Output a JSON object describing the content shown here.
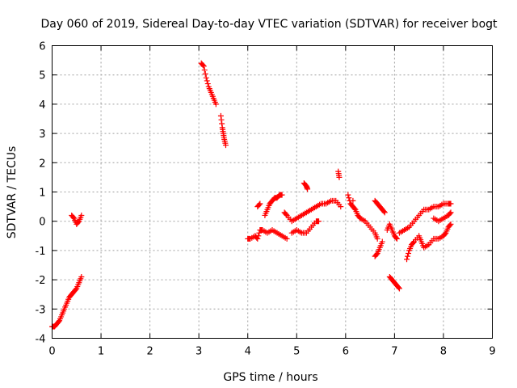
{
  "chart_data": {
    "type": "scatter",
    "title": "Day 060 of 2019, Sidereal Day-to-day VTEC variation (SDTVAR) for receiver bogt",
    "xlabel": "GPS time / hours",
    "ylabel": "SDTVAR / TECUs",
    "xlim": [
      0,
      9
    ],
    "ylim": [
      -4,
      6
    ],
    "xticks": [
      "0",
      "1",
      "2",
      "3",
      "4",
      "5",
      "6",
      "7",
      "8",
      "9"
    ],
    "yticks": [
      "-4",
      "-3",
      "-2",
      "-1",
      "0",
      "1",
      "2",
      "3",
      "4",
      "5",
      "6"
    ],
    "grid": true,
    "marker": "plus",
    "color": "#ff0000",
    "segments": [
      [
        [
          0.0,
          -3.6
        ],
        [
          0.05,
          -3.6
        ],
        [
          0.1,
          -3.5
        ],
        [
          0.15,
          -3.4
        ],
        [
          0.2,
          -3.2
        ],
        [
          0.25,
          -3.0
        ],
        [
          0.3,
          -2.8
        ],
        [
          0.35,
          -2.6
        ],
        [
          0.4,
          -2.5
        ],
        [
          0.45,
          -2.4
        ],
        [
          0.5,
          -2.3
        ],
        [
          0.55,
          -2.1
        ],
        [
          0.6,
          -1.9
        ]
      ],
      [
        [
          0.4,
          0.2
        ],
        [
          0.45,
          0.1
        ],
        [
          0.5,
          -0.1
        ],
        [
          0.55,
          0.0
        ],
        [
          0.6,
          0.2
        ]
      ],
      [
        [
          3.05,
          5.4
        ],
        [
          3.1,
          5.3
        ],
        [
          3.15,
          4.9
        ],
        [
          3.2,
          4.6
        ],
        [
          3.25,
          4.4
        ],
        [
          3.3,
          4.2
        ],
        [
          3.35,
          4.0
        ]
      ],
      [
        [
          3.45,
          3.6
        ],
        [
          3.48,
          3.2
        ],
        [
          3.5,
          3.0
        ],
        [
          3.52,
          2.8
        ],
        [
          3.55,
          2.6
        ]
      ],
      [
        [
          4.0,
          -0.6
        ],
        [
          4.05,
          -0.6
        ],
        [
          4.15,
          -0.5
        ],
        [
          4.2,
          -0.6
        ],
        [
          4.25,
          -0.3
        ],
        [
          4.3,
          -0.3
        ],
        [
          4.4,
          -0.4
        ],
        [
          4.5,
          -0.3
        ],
        [
          4.6,
          -0.4
        ],
        [
          4.7,
          -0.5
        ],
        [
          4.8,
          -0.6
        ]
      ],
      [
        [
          4.2,
          0.5
        ],
        [
          4.25,
          0.6
        ]
      ],
      [
        [
          4.35,
          0.2
        ],
        [
          4.4,
          0.4
        ],
        [
          4.45,
          0.6
        ],
        [
          4.5,
          0.7
        ],
        [
          4.55,
          0.8
        ],
        [
          4.6,
          0.8
        ],
        [
          4.65,
          0.9
        ],
        [
          4.7,
          0.9
        ]
      ],
      [
        [
          4.75,
          0.3
        ],
        [
          4.8,
          0.2
        ],
        [
          4.9,
          0.0
        ],
        [
          5.0,
          0.1
        ],
        [
          5.1,
          0.2
        ],
        [
          5.2,
          0.3
        ],
        [
          5.3,
          0.4
        ],
        [
          5.4,
          0.5
        ],
        [
          5.5,
          0.6
        ],
        [
          5.6,
          0.6
        ],
        [
          5.7,
          0.7
        ],
        [
          5.8,
          0.7
        ],
        [
          5.9,
          0.5
        ]
      ],
      [
        [
          4.9,
          -0.4
        ],
        [
          5.0,
          -0.3
        ],
        [
          5.1,
          -0.4
        ],
        [
          5.2,
          -0.4
        ],
        [
          5.3,
          -0.2
        ],
        [
          5.4,
          0.0
        ],
        [
          5.45,
          0.0
        ]
      ],
      [
        [
          5.15,
          1.3
        ],
        [
          5.2,
          1.2
        ],
        [
          5.22,
          1.1
        ]
      ],
      [
        [
          5.85,
          1.7
        ],
        [
          5.87,
          1.5
        ]
      ],
      [
        [
          6.05,
          0.9
        ],
        [
          6.1,
          0.6
        ],
        [
          6.15,
          0.5
        ],
        [
          6.2,
          0.4
        ],
        [
          6.25,
          0.2
        ],
        [
          6.3,
          0.1
        ],
        [
          6.4,
          0.0
        ],
        [
          6.5,
          -0.2
        ],
        [
          6.6,
          -0.4
        ],
        [
          6.65,
          -0.6
        ]
      ],
      [
        [
          6.15,
          0.7
        ]
      ],
      [
        [
          6.6,
          0.7
        ],
        [
          6.65,
          0.6
        ],
        [
          6.7,
          0.5
        ],
        [
          6.75,
          0.4
        ],
        [
          6.8,
          0.3
        ]
      ],
      [
        [
          6.6,
          -1.2
        ],
        [
          6.65,
          -1.1
        ],
        [
          6.7,
          -0.9
        ],
        [
          6.75,
          -0.7
        ]
      ],
      [
        [
          6.85,
          -0.3
        ],
        [
          6.9,
          -0.1
        ],
        [
          6.95,
          -0.3
        ],
        [
          7.0,
          -0.5
        ],
        [
          7.05,
          -0.6
        ]
      ],
      [
        [
          6.9,
          -1.9
        ],
        [
          6.95,
          -2.0
        ],
        [
          7.0,
          -2.1
        ],
        [
          7.05,
          -2.2
        ],
        [
          7.1,
          -2.3
        ]
      ],
      [
        [
          7.1,
          -0.4
        ],
        [
          7.2,
          -0.3
        ],
        [
          7.3,
          -0.2
        ],
        [
          7.4,
          0.0
        ],
        [
          7.5,
          0.2
        ],
        [
          7.6,
          0.4
        ],
        [
          7.7,
          0.4
        ],
        [
          7.8,
          0.5
        ],
        [
          7.9,
          0.5
        ],
        [
          8.0,
          0.6
        ],
        [
          8.1,
          0.6
        ],
        [
          8.15,
          0.6
        ]
      ],
      [
        [
          7.25,
          -1.3
        ],
        [
          7.3,
          -1.0
        ],
        [
          7.35,
          -0.8
        ],
        [
          7.4,
          -0.7
        ],
        [
          7.5,
          -0.5
        ],
        [
          7.55,
          -0.7
        ],
        [
          7.6,
          -0.9
        ],
        [
          7.7,
          -0.8
        ],
        [
          7.8,
          -0.6
        ],
        [
          7.9,
          -0.6
        ],
        [
          8.0,
          -0.5
        ],
        [
          8.05,
          -0.4
        ],
        [
          8.1,
          -0.2
        ],
        [
          8.15,
          -0.1
        ]
      ],
      [
        [
          7.8,
          0.1
        ],
        [
          7.9,
          0.0
        ],
        [
          8.0,
          0.1
        ],
        [
          8.1,
          0.2
        ],
        [
          8.15,
          0.3
        ]
      ]
    ]
  }
}
